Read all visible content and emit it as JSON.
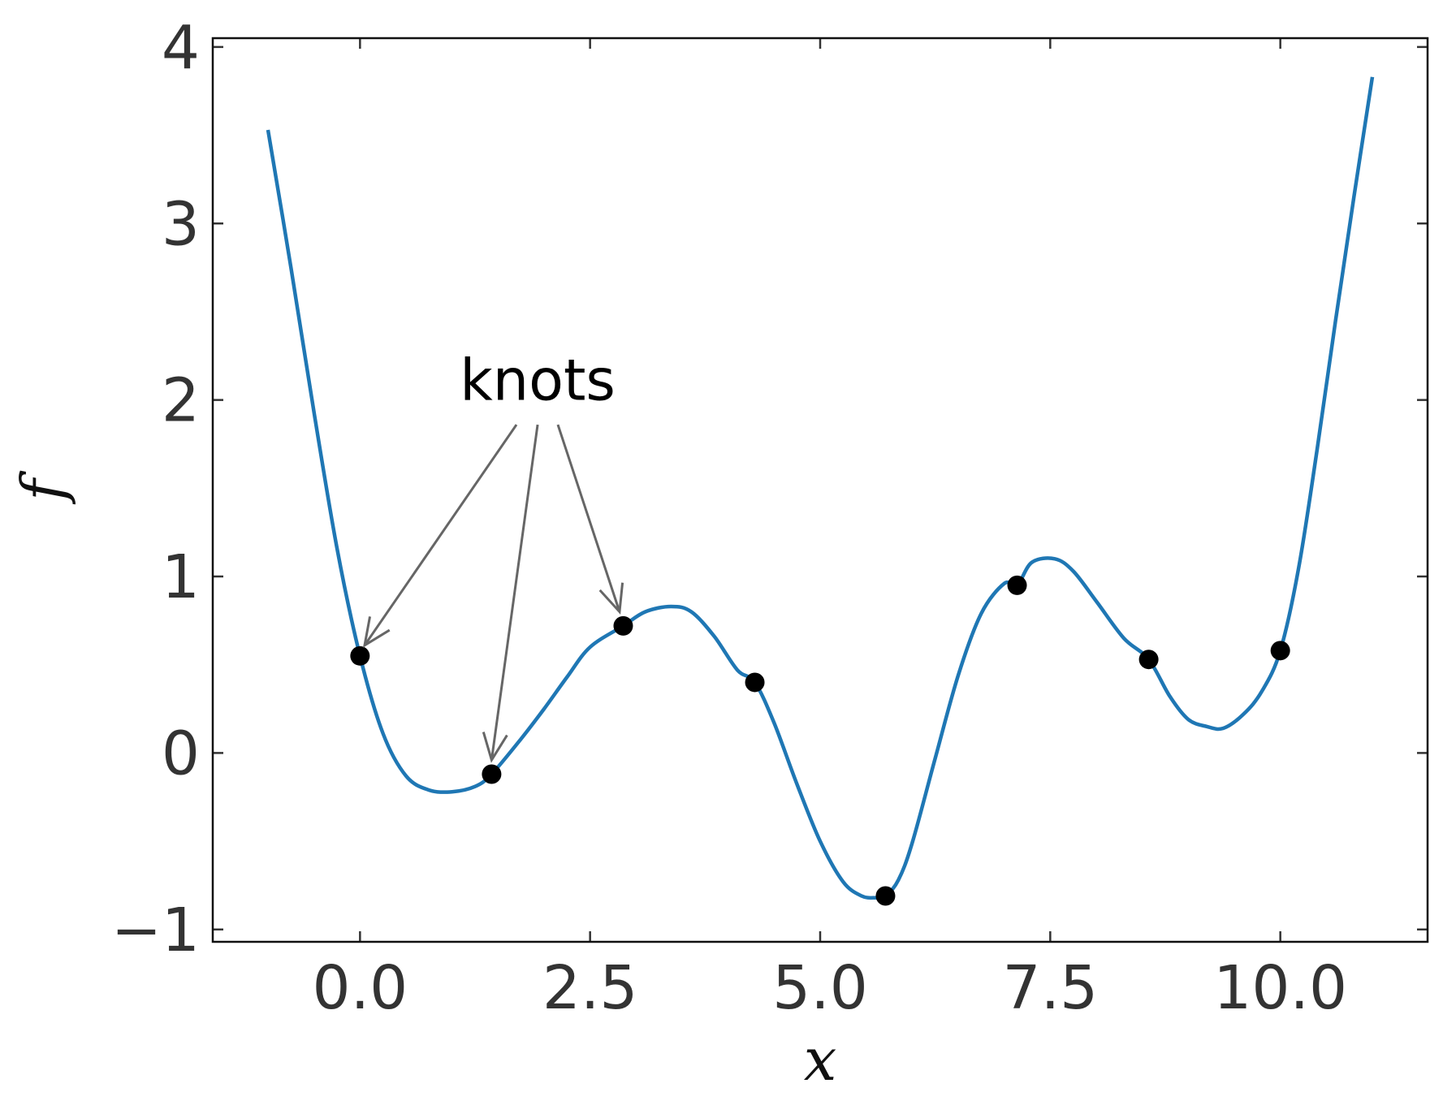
{
  "chart_data": {
    "type": "line",
    "title": "",
    "xlabel": "x",
    "ylabel": "f",
    "xlim": [
      -1.6,
      11.6
    ],
    "ylim": [
      -1.07,
      4.05
    ],
    "xticks": [
      0.0,
      2.5,
      5.0,
      7.5,
      10.0
    ],
    "xtick_labels": [
      "0.0",
      "2.5",
      "5.0",
      "7.5",
      "10.0"
    ],
    "yticks": [
      -1,
      0,
      1,
      2,
      3,
      4
    ],
    "ytick_labels": [
      "−1",
      "0",
      "1",
      "2",
      "3",
      "4"
    ],
    "grid": false,
    "series": [
      {
        "type": "line",
        "color": "#1f77b4",
        "x": [
          -1.0,
          -0.75,
          -0.5,
          -0.25,
          0.0,
          0.25,
          0.5,
          0.75,
          1.0,
          1.25,
          1.43,
          1.75,
          2.0,
          2.25,
          2.5,
          2.86,
          3.1,
          3.38,
          3.6,
          3.85,
          4.1,
          4.29,
          4.5,
          4.75,
          5.0,
          5.25,
          5.45,
          5.6,
          5.71,
          5.85,
          6.0,
          6.25,
          6.5,
          6.75,
          7.0,
          7.14,
          7.3,
          7.55,
          7.75,
          8.0,
          8.3,
          8.57,
          8.8,
          9.0,
          9.2,
          9.38,
          9.6,
          9.8,
          10.0,
          10.2,
          10.4,
          10.6,
          10.8,
          11.0
        ],
        "y": [
          3.53,
          2.75,
          1.93,
          1.16,
          0.55,
          0.11,
          -0.13,
          -0.21,
          -0.22,
          -0.19,
          -0.12,
          0.08,
          0.25,
          0.43,
          0.6,
          0.72,
          0.8,
          0.83,
          0.8,
          0.66,
          0.47,
          0.4,
          0.17,
          -0.18,
          -0.5,
          -0.73,
          -0.81,
          -0.82,
          -0.81,
          -0.72,
          -0.51,
          -0.03,
          0.44,
          0.79,
          0.96,
          0.95,
          1.08,
          1.1,
          1.03,
          0.86,
          0.65,
          0.53,
          0.32,
          0.19,
          0.15,
          0.14,
          0.22,
          0.35,
          0.58,
          1.05,
          1.72,
          2.45,
          3.15,
          3.83
        ]
      },
      {
        "type": "scatter",
        "color": "#000000",
        "x": [
          0.0,
          1.43,
          2.86,
          4.29,
          5.71,
          7.14,
          8.57,
          10.0
        ],
        "y": [
          0.55,
          -0.12,
          0.72,
          0.4,
          -0.81,
          0.95,
          0.53,
          0.58
        ]
      }
    ],
    "annotations": [
      {
        "text": "knots",
        "arrow_color": "#666666",
        "arrows": [
          {
            "from": [
              1.7,
              1.86
            ],
            "to": [
              0.05,
              0.61
            ]
          },
          {
            "from": [
              1.93,
              1.86
            ],
            "to": [
              1.43,
              -0.04
            ]
          },
          {
            "from": [
              2.15,
              1.86
            ],
            "to": [
              2.82,
              0.8
            ]
          }
        ]
      }
    ]
  }
}
